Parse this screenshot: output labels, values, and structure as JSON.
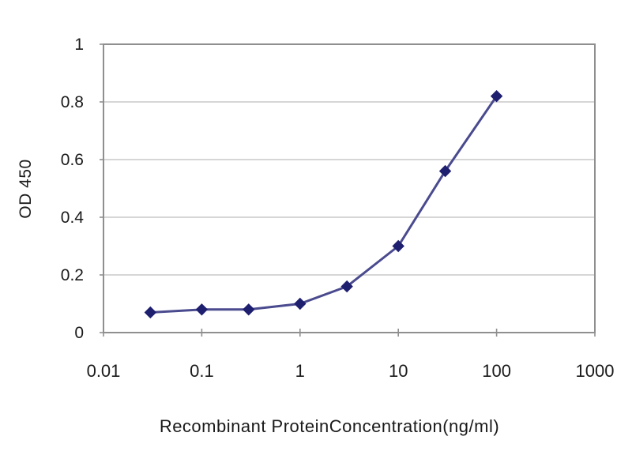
{
  "chart_data": {
    "type": "line",
    "title": "",
    "xlabel": "Recombinant ProteinConcentration(ng/ml)",
    "ylabel": "OD 450",
    "x_scale": "log",
    "xlim": [
      0.01,
      1000
    ],
    "ylim": [
      0,
      1
    ],
    "x_ticks": [
      0.01,
      0.1,
      1,
      10,
      100,
      1000
    ],
    "x_tick_labels": [
      "0.01",
      "0.1",
      "1",
      "10",
      "100",
      "1000"
    ],
    "y_ticks": [
      0,
      0.2,
      0.4,
      0.6,
      0.8,
      1
    ],
    "y_tick_labels": [
      "0",
      "0.2",
      "0.4",
      "0.6",
      "0.8",
      "1"
    ],
    "grid": "horizontal-major-only",
    "legend": "none",
    "marker": "diamond",
    "series": [
      {
        "name": "OD 450",
        "x": [
          0.03,
          0.1,
          0.3,
          1,
          3,
          10,
          30,
          100
        ],
        "y": [
          0.07,
          0.08,
          0.08,
          0.1,
          0.16,
          0.3,
          0.56,
          0.82
        ]
      }
    ],
    "colors": {
      "line": "#4a4a8f",
      "marker": "#1f1f70",
      "grid": "#c9c9c9",
      "axis": "#8f8f8f",
      "text": "#1a1a1a",
      "background": "#ffffff"
    }
  }
}
